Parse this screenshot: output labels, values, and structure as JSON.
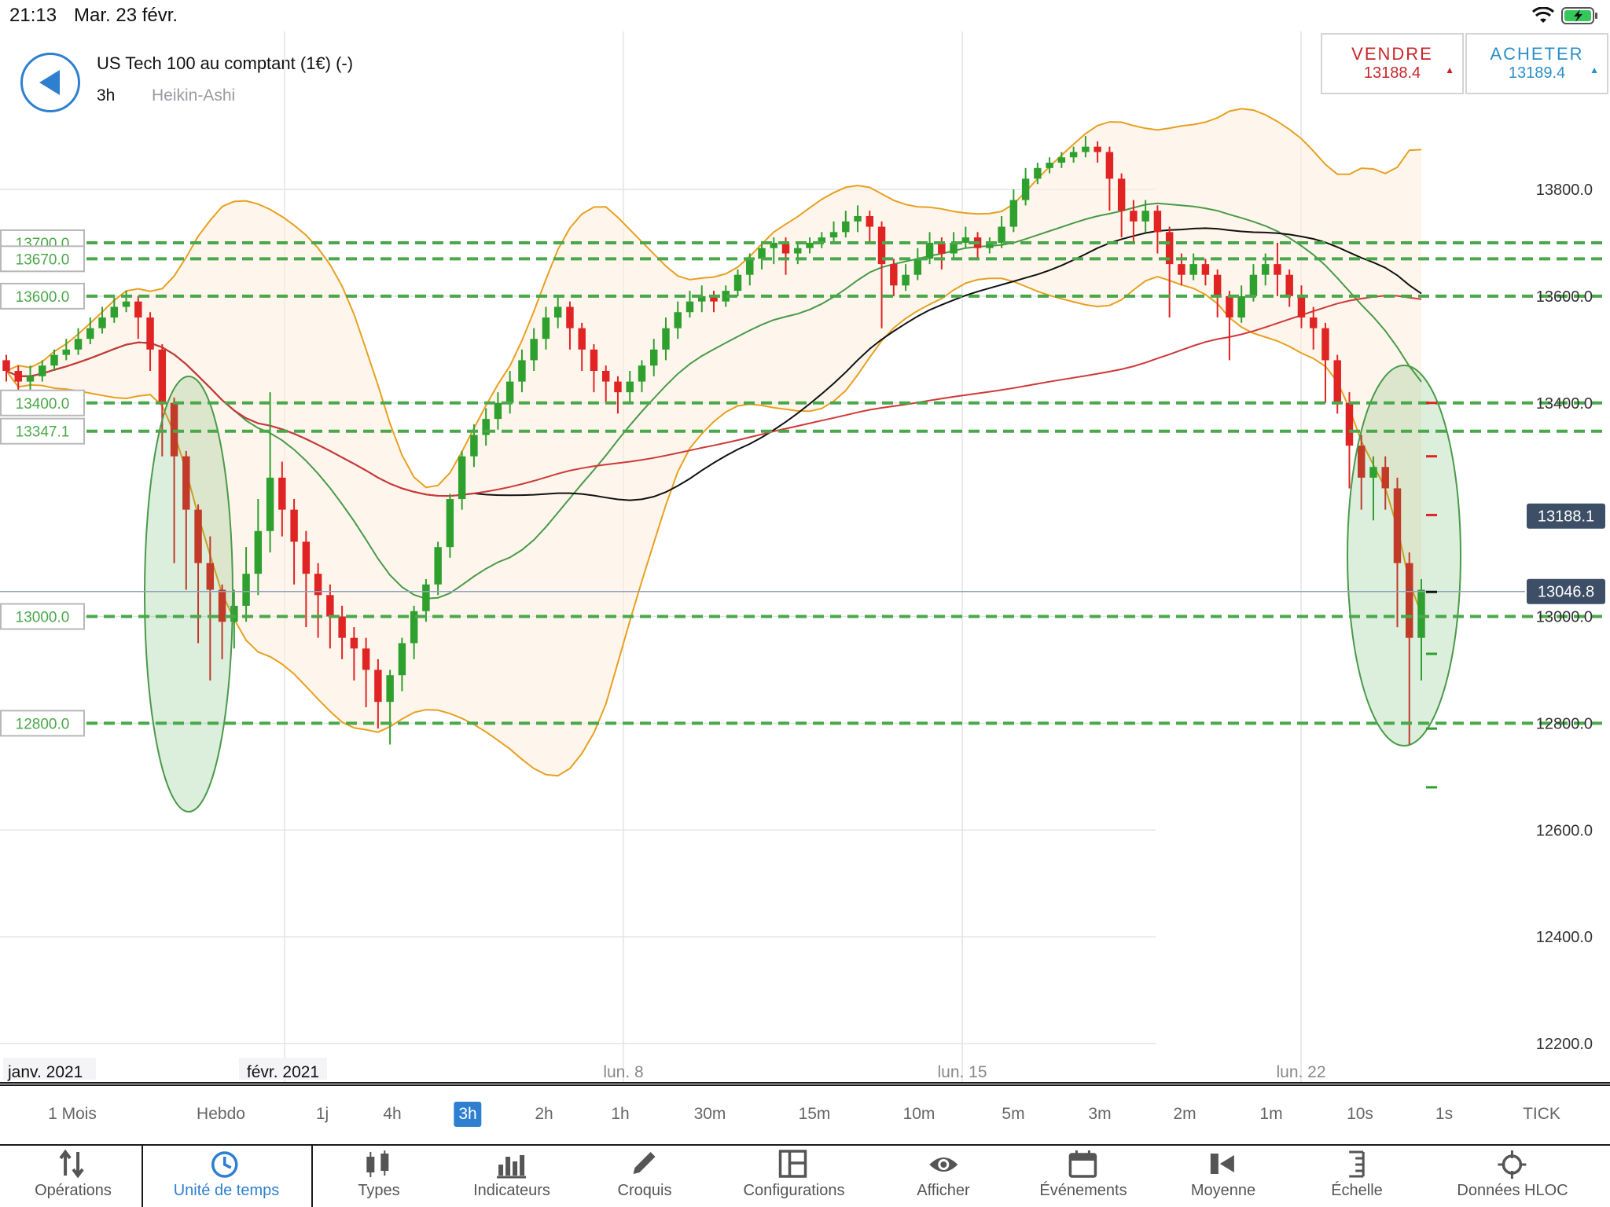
{
  "status_bar": {
    "time": "21:13",
    "date": "Mar. 23 févr."
  },
  "header": {
    "title": "US Tech 100 au comptant (1€) (-)",
    "timeframe": "3h",
    "chart_type": "Heikin-Ashi"
  },
  "trade": {
    "sell_label": "VENDRE",
    "sell_price": "13188.4",
    "sell_arrow": "▲",
    "buy_label": "ACHETER",
    "buy_price": "13189.4",
    "buy_arrow": "▲"
  },
  "colors": {
    "bull": "#2ea02e",
    "bear": "#e02424",
    "bollinger": "#e8a020",
    "sma_green": "#4a9a4a",
    "sma_black": "#111111",
    "sma_red": "#d03838",
    "level": "#4aa84a",
    "accent": "#2e7fd0"
  },
  "chart_data": {
    "type": "candlestick",
    "ylim": [
      12150,
      13970
    ],
    "y_ticks": [
      "13800.0",
      "13600.0",
      "13400.0",
      "13000.0",
      "12800.0",
      "12600.0",
      "12400.0",
      "12200.0"
    ],
    "y_tick_values": [
      13800,
      13600,
      13400,
      13000,
      12800,
      12600,
      12400,
      12200
    ],
    "x_labels": [
      "janv. 2021",
      "févr. 2021",
      "lun. 8",
      "lun. 15",
      "lun. 22"
    ],
    "levels": [
      {
        "label": "13700.0",
        "value": 13700
      },
      {
        "label": "13670.0",
        "value": 13670
      },
      {
        "label": "13600.0",
        "value": 13600
      },
      {
        "label": "13400.0",
        "value": 13400
      },
      {
        "label": "13347.1",
        "value": 13347.1
      },
      {
        "label": "13000.0",
        "value": 13000
      },
      {
        "label": "12800.0",
        "value": 12800
      }
    ],
    "price_tags": [
      {
        "label": "13188.1",
        "value": 13188.1
      },
      {
        "label": "13046.8",
        "value": 13046.8
      }
    ],
    "candles": [
      [
        13480,
        13460,
        13490,
        13440
      ],
      [
        13460,
        13440,
        13470,
        13420
      ],
      [
        13440,
        13450,
        13470,
        13420
      ],
      [
        13450,
        13470,
        13480,
        13440
      ],
      [
        13470,
        13490,
        13500,
        13460
      ],
      [
        13490,
        13500,
        13520,
        13480
      ],
      [
        13500,
        13520,
        13540,
        13490
      ],
      [
        13520,
        13540,
        13560,
        13510
      ],
      [
        13540,
        13560,
        13580,
        13530
      ],
      [
        13560,
        13580,
        13600,
        13550
      ],
      [
        13580,
        13590,
        13610,
        13570
      ],
      [
        13590,
        13560,
        13600,
        13520
      ],
      [
        13560,
        13500,
        13570,
        13460
      ],
      [
        13500,
        13400,
        13510,
        13300
      ],
      [
        13400,
        13300,
        13410,
        13100
      ],
      [
        13300,
        13200,
        13310,
        13050
      ],
      [
        13200,
        13100,
        13210,
        12950
      ],
      [
        13100,
        13050,
        13150,
        12880
      ],
      [
        13050,
        12990,
        13060,
        12920
      ],
      [
        12990,
        13020,
        13050,
        12940
      ],
      [
        13020,
        13080,
        13130,
        12990
      ],
      [
        13080,
        13160,
        13220,
        13040
      ],
      [
        13160,
        13260,
        13420,
        13120
      ],
      [
        13260,
        13200,
        13290,
        13150
      ],
      [
        13200,
        13140,
        13220,
        13060
      ],
      [
        13140,
        13080,
        13160,
        12980
      ],
      [
        13080,
        13040,
        13100,
        12960
      ],
      [
        13040,
        13000,
        13060,
        12940
      ],
      [
        13000,
        12960,
        13020,
        12920
      ],
      [
        12960,
        12940,
        12980,
        12880
      ],
      [
        12940,
        12900,
        12960,
        12830
      ],
      [
        12900,
        12840,
        12920,
        12790
      ],
      [
        12840,
        12890,
        12900,
        12760
      ],
      [
        12890,
        12950,
        12960,
        12860
      ],
      [
        12950,
        13010,
        13020,
        12920
      ],
      [
        13010,
        13060,
        13070,
        12990
      ],
      [
        13060,
        13130,
        13140,
        13040
      ],
      [
        13130,
        13220,
        13230,
        13110
      ],
      [
        13220,
        13300,
        13310,
        13200
      ],
      [
        13300,
        13340,
        13360,
        13280
      ],
      [
        13340,
        13370,
        13390,
        13320
      ],
      [
        13370,
        13400,
        13420,
        13350
      ],
      [
        13400,
        13440,
        13460,
        13380
      ],
      [
        13440,
        13480,
        13500,
        13420
      ],
      [
        13480,
        13520,
        13540,
        13460
      ],
      [
        13520,
        13560,
        13580,
        13500
      ],
      [
        13560,
        13580,
        13600,
        13540
      ],
      [
        13580,
        13540,
        13590,
        13500
      ],
      [
        13540,
        13500,
        13550,
        13460
      ],
      [
        13500,
        13460,
        13510,
        13420
      ],
      [
        13460,
        13440,
        13470,
        13400
      ],
      [
        13440,
        13420,
        13450,
        13380
      ],
      [
        13420,
        13440,
        13460,
        13400
      ],
      [
        13440,
        13470,
        13480,
        13420
      ],
      [
        13470,
        13500,
        13520,
        13450
      ],
      [
        13500,
        13540,
        13560,
        13480
      ],
      [
        13540,
        13570,
        13590,
        13520
      ],
      [
        13570,
        13590,
        13610,
        13560
      ],
      [
        13590,
        13600,
        13620,
        13570
      ],
      [
        13600,
        13590,
        13610,
        13570
      ],
      [
        13590,
        13610,
        13620,
        13580
      ],
      [
        13610,
        13640,
        13650,
        13600
      ],
      [
        13640,
        13670,
        13680,
        13620
      ],
      [
        13670,
        13690,
        13700,
        13650
      ],
      [
        13690,
        13700,
        13710,
        13660
      ],
      [
        13700,
        13680,
        13710,
        13640
      ],
      [
        13680,
        13690,
        13700,
        13660
      ],
      [
        13690,
        13700,
        13710,
        13680
      ],
      [
        13700,
        13710,
        13720,
        13690
      ],
      [
        13710,
        13720,
        13740,
        13700
      ],
      [
        13720,
        13740,
        13760,
        13710
      ],
      [
        13740,
        13750,
        13770,
        13720
      ],
      [
        13750,
        13730,
        13760,
        13700
      ],
      [
        13730,
        13660,
        13740,
        13540
      ],
      [
        13660,
        13620,
        13670,
        13600
      ],
      [
        13620,
        13640,
        13660,
        13610
      ],
      [
        13640,
        13670,
        13690,
        13630
      ],
      [
        13670,
        13700,
        13720,
        13660
      ],
      [
        13700,
        13680,
        13710,
        13650
      ],
      [
        13680,
        13700,
        13720,
        13670
      ],
      [
        13700,
        13710,
        13730,
        13690
      ],
      [
        13710,
        13690,
        13720,
        13670
      ],
      [
        13690,
        13700,
        13710,
        13680
      ],
      [
        13700,
        13730,
        13750,
        13690
      ],
      [
        13730,
        13780,
        13800,
        13720
      ],
      [
        13780,
        13820,
        13840,
        13770
      ],
      [
        13820,
        13840,
        13850,
        13810
      ],
      [
        13840,
        13850,
        13860,
        13830
      ],
      [
        13850,
        13860,
        13870,
        13840
      ],
      [
        13860,
        13870,
        13880,
        13850
      ],
      [
        13870,
        13880,
        13900,
        13860
      ],
      [
        13880,
        13870,
        13890,
        13850
      ],
      [
        13870,
        13820,
        13880,
        13760
      ],
      [
        13820,
        13760,
        13830,
        13710
      ],
      [
        13760,
        13740,
        13780,
        13700
      ],
      [
        13740,
        13760,
        13780,
        13720
      ],
      [
        13760,
        13720,
        13770,
        13680
      ],
      [
        13720,
        13660,
        13730,
        13560
      ],
      [
        13660,
        13640,
        13680,
        13620
      ],
      [
        13640,
        13660,
        13680,
        13630
      ],
      [
        13660,
        13640,
        13670,
        13620
      ],
      [
        13640,
        13600,
        13650,
        13560
      ],
      [
        13600,
        13560,
        13610,
        13480
      ],
      [
        13560,
        13600,
        13620,
        13550
      ],
      [
        13600,
        13640,
        13660,
        13590
      ],
      [
        13640,
        13660,
        13680,
        13620
      ],
      [
        13660,
        13640,
        13700,
        13600
      ],
      [
        13640,
        13600,
        13650,
        13580
      ],
      [
        13600,
        13560,
        13620,
        13540
      ],
      [
        13560,
        13540,
        13580,
        13500
      ],
      [
        13540,
        13480,
        13550,
        13400
      ],
      [
        13480,
        13400,
        13490,
        13380
      ],
      [
        13400,
        13320,
        13420,
        13240
      ],
      [
        13320,
        13260,
        13340,
        13200
      ],
      [
        13260,
        13280,
        13300,
        13180
      ],
      [
        13280,
        13240,
        13300,
        13200
      ],
      [
        13240,
        13100,
        13260,
        12980
      ],
      [
        13100,
        12960,
        13120,
        12760
      ],
      [
        12960,
        13050,
        13070,
        12880
      ]
    ]
  },
  "timeframes": [
    {
      "label": "1 Mois",
      "active": false
    },
    {
      "label": "Hebdo",
      "active": false
    },
    {
      "label": "1j",
      "active": false
    },
    {
      "label": "4h",
      "active": false
    },
    {
      "label": "3h",
      "active": true
    },
    {
      "label": "2h",
      "active": false
    },
    {
      "label": "1h",
      "active": false
    },
    {
      "label": "30m",
      "active": false
    },
    {
      "label": "15m",
      "active": false
    },
    {
      "label": "10m",
      "active": false
    },
    {
      "label": "5m",
      "active": false
    },
    {
      "label": "3m",
      "active": false
    },
    {
      "label": "2m",
      "active": false
    },
    {
      "label": "1m",
      "active": false
    },
    {
      "label": "10s",
      "active": false
    },
    {
      "label": "1s",
      "active": false
    },
    {
      "label": "TICK",
      "active": false
    }
  ],
  "toolbar": [
    {
      "label": "Opérations",
      "icon": "transfer-arrows-icon",
      "active": false
    },
    {
      "label": "Unité de temps",
      "icon": "clock-icon",
      "active": true
    },
    {
      "label": "Types",
      "icon": "candles-icon",
      "active": false
    },
    {
      "label": "Indicateurs",
      "icon": "bar-chart-icon",
      "active": false
    },
    {
      "label": "Croquis",
      "icon": "pencil-icon",
      "active": false
    },
    {
      "label": "Configurations",
      "icon": "layout-icon",
      "active": false
    },
    {
      "label": "Afficher",
      "icon": "eye-icon",
      "active": false
    },
    {
      "label": "Événements",
      "icon": "calendar-icon",
      "active": false
    },
    {
      "label": "Moyenne",
      "icon": "average-icon",
      "active": false
    },
    {
      "label": "Échelle",
      "icon": "scale-icon",
      "active": false
    },
    {
      "label": "Données HLOC",
      "icon": "crosshair-icon",
      "active": false
    }
  ]
}
